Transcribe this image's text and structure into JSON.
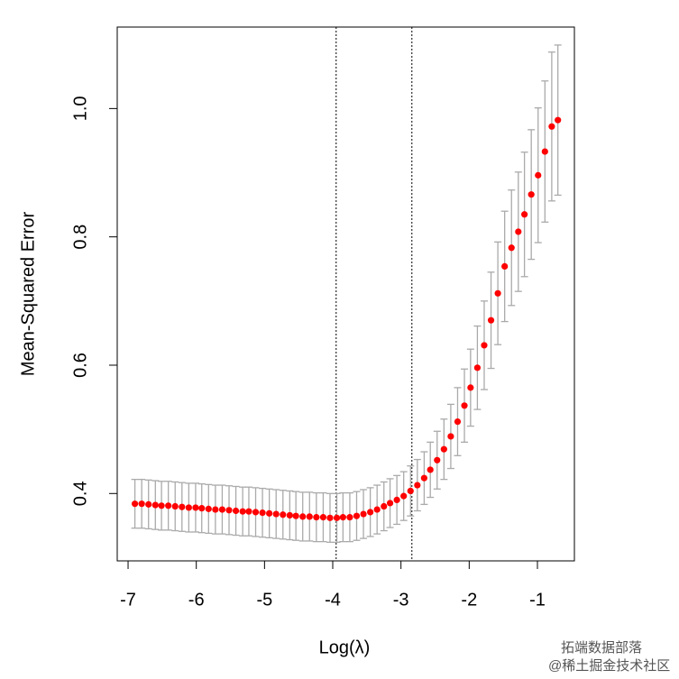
{
  "chart_data": {
    "type": "scatter",
    "xlabel": "Log(λ)",
    "ylabel": "Mean-Squared Error",
    "x": [
      -6.9,
      -6.8,
      -6.7,
      -6.6,
      -6.51,
      -6.41,
      -6.31,
      -6.21,
      -6.11,
      -6.01,
      -5.92,
      -5.82,
      -5.72,
      -5.62,
      -5.52,
      -5.42,
      -5.32,
      -5.23,
      -5.13,
      -5.03,
      -4.93,
      -4.83,
      -4.73,
      -4.63,
      -4.54,
      -4.44,
      -4.34,
      -4.24,
      -4.14,
      -4.04,
      -3.94,
      -3.85,
      -3.75,
      -3.65,
      -3.55,
      -3.45,
      -3.35,
      -3.25,
      -3.16,
      -3.06,
      -2.96,
      -2.86,
      -2.76,
      -2.66,
      -2.57,
      -2.47,
      -2.37,
      -2.27,
      -2.17,
      -2.07,
      -1.98,
      -1.88,
      -1.78,
      -1.68,
      -1.58,
      -1.48,
      -1.38,
      -1.28,
      -1.19,
      -1.09,
      -0.99,
      -0.89,
      -0.79,
      -0.7
    ],
    "values": [
      0.384,
      0.384,
      0.383,
      0.382,
      0.381,
      0.381,
      0.38,
      0.379,
      0.378,
      0.378,
      0.377,
      0.376,
      0.375,
      0.375,
      0.374,
      0.373,
      0.372,
      0.372,
      0.371,
      0.37,
      0.369,
      0.368,
      0.367,
      0.366,
      0.365,
      0.364,
      0.364,
      0.363,
      0.363,
      0.362,
      0.362,
      0.363,
      0.363,
      0.365,
      0.368,
      0.371,
      0.375,
      0.38,
      0.385,
      0.39,
      0.396,
      0.404,
      0.413,
      0.424,
      0.437,
      0.452,
      0.469,
      0.489,
      0.512,
      0.537,
      0.565,
      0.596,
      0.631,
      0.67,
      0.712,
      0.754,
      0.783,
      0.808,
      0.835,
      0.866,
      0.896,
      0.933,
      0.972,
      0.982
    ],
    "errors": [
      0.038,
      0.038,
      0.038,
      0.038,
      0.038,
      0.038,
      0.038,
      0.038,
      0.038,
      0.038,
      0.038,
      0.038,
      0.038,
      0.038,
      0.038,
      0.038,
      0.038,
      0.038,
      0.038,
      0.038,
      0.038,
      0.038,
      0.038,
      0.038,
      0.038,
      0.038,
      0.038,
      0.038,
      0.038,
      0.038,
      0.038,
      0.038,
      0.038,
      0.038,
      0.038,
      0.038,
      0.038,
      0.038,
      0.038,
      0.038,
      0.038,
      0.039,
      0.04,
      0.041,
      0.043,
      0.045,
      0.047,
      0.05,
      0.053,
      0.057,
      0.06,
      0.065,
      0.069,
      0.075,
      0.08,
      0.086,
      0.09,
      0.093,
      0.097,
      0.101,
      0.105,
      0.11,
      0.116,
      0.117
    ],
    "color": "#ff0000",
    "error_color": "#aaaaaa",
    "vlines": [
      -3.95,
      -2.84
    ],
    "xlim": [
      -7.159,
      -0.458
    ],
    "ylim": [
      0.295,
      1.127
    ],
    "xticks": [
      -7,
      -6,
      -5,
      -4,
      -3,
      -2,
      -1
    ],
    "yticks": [
      0.4,
      0.6,
      0.8,
      {
        "value": 1,
        "label": "1.0"
      }
    ]
  },
  "watermark": {
    "line1": "拓端数据部落",
    "line2": "@稀土掘金技术社区"
  }
}
